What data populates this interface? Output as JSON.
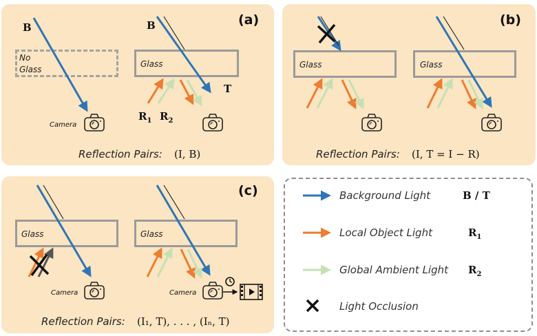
{
  "panels": {
    "a": {
      "label": "(a)",
      "no_glass_line1": "No",
      "no_glass_line2": "Glass",
      "glass": "Glass",
      "camera": "Camera",
      "b_left": "B",
      "b_right": "B",
      "t": "T",
      "r1": "R",
      "r1_sub": "1",
      "r2": "R",
      "r2_sub": "2",
      "caption": "Reflection Pairs:",
      "formula": "(I, B)"
    },
    "b": {
      "label": "(b)",
      "glass_left": "Glass",
      "glass_right": "Glass",
      "caption": "Reflection Pairs:",
      "formula": "(I, T = I − R)"
    },
    "c": {
      "label": "(c)",
      "glass_left": "Glass",
      "glass_right": "Glass",
      "camera_left": "Camera",
      "camera_right": "Camera",
      "caption": "Reflection Pairs:",
      "formula": "(I₁, T), . . . , (Iₙ, T)"
    }
  },
  "legend": {
    "items": [
      {
        "label": "Background Light",
        "symbol": "B / T",
        "sub": "",
        "color": "#2e75b6",
        "kind": "arrow"
      },
      {
        "label": "Local Object Light",
        "symbol": "R",
        "sub": "1",
        "color": "#ed7d31",
        "kind": "arrow"
      },
      {
        "label": "Global Ambient Light",
        "symbol": "R",
        "sub": "2",
        "color": "#c5e0b4",
        "kind": "arrow"
      },
      {
        "label": "Light Occlusion",
        "symbol": "",
        "sub": "",
        "color": "#000000",
        "kind": "cross"
      }
    ]
  },
  "colors": {
    "panel_bg": "#fbe5c2",
    "background_light": "#2e75b6",
    "local_light": "#ed7d31",
    "ambient_light": "#c5e0b4",
    "glass_border": "#9a9a9a"
  }
}
